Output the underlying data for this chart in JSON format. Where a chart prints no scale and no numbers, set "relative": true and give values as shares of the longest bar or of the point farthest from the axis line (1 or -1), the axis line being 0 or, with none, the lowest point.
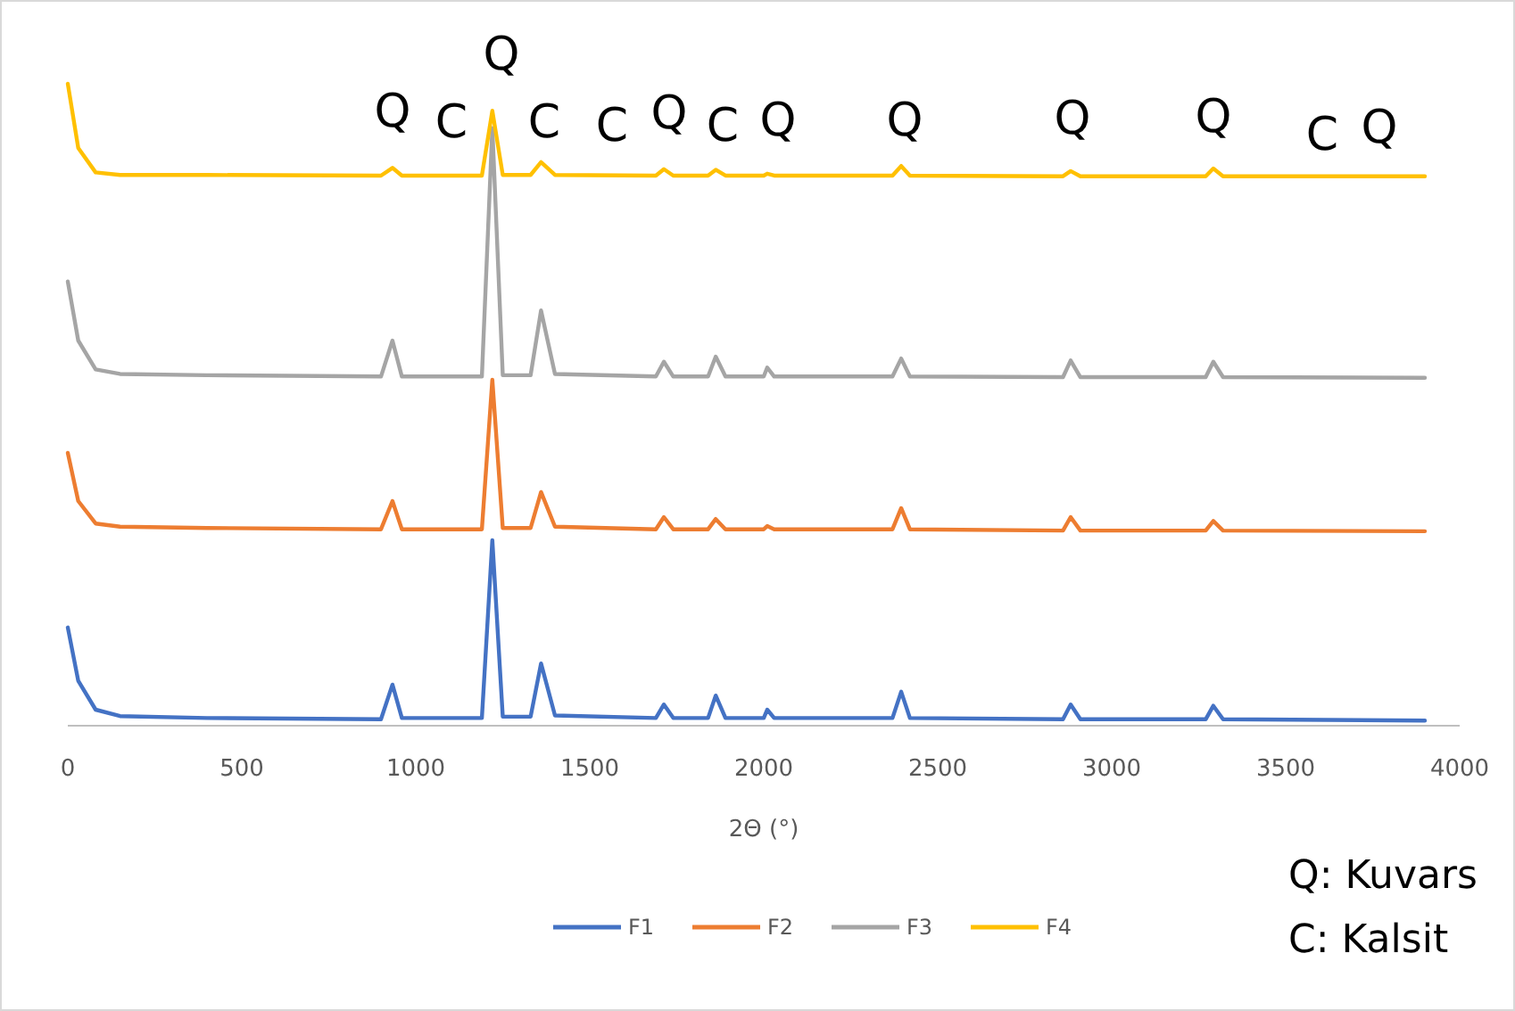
{
  "chart_data": {
    "type": "line",
    "relative": true,
    "xlabel": "2Θ (°)",
    "xlim": [
      0,
      4000
    ],
    "xticks": [
      0,
      500,
      1000,
      1500,
      2000,
      2500,
      3000,
      3500,
      4000
    ],
    "grid": false,
    "legend": "bottom",
    "marker": "none",
    "line_style": "solid",
    "x": [
      0,
      30,
      80,
      150,
      400,
      900,
      933,
      960,
      1190,
      1220,
      1250,
      1330,
      1360,
      1400,
      1690,
      1713,
      1740,
      1840,
      1862,
      1890,
      2000,
      2010,
      2030,
      2370,
      2395,
      2420,
      2860,
      2882,
      2910,
      3270,
      3292,
      3320,
      3900
    ],
    "series": [
      {
        "name": "F1",
        "color": "#4472c4",
        "values": [
          0.153,
          0.07,
          0.025,
          0.015,
          0.012,
          0.01,
          0.064,
          0.012,
          0.012,
          0.289,
          0.014,
          0.014,
          0.097,
          0.016,
          0.012,
          0.033,
          0.012,
          0.012,
          0.047,
          0.012,
          0.012,
          0.025,
          0.012,
          0.012,
          0.053,
          0.012,
          0.01,
          0.033,
          0.01,
          0.01,
          0.031,
          0.01,
          0.008
        ]
      },
      {
        "name": "F2",
        "color": "#ed7d31",
        "values": [
          0.425,
          0.35,
          0.315,
          0.31,
          0.308,
          0.306,
          0.35,
          0.306,
          0.306,
          0.539,
          0.308,
          0.308,
          0.364,
          0.31,
          0.306,
          0.325,
          0.306,
          0.306,
          0.322,
          0.306,
          0.306,
          0.311,
          0.306,
          0.306,
          0.339,
          0.306,
          0.304,
          0.325,
          0.304,
          0.304,
          0.319,
          0.304,
          0.303
        ]
      },
      {
        "name": "F3",
        "color": "#a5a5a5",
        "values": [
          0.692,
          0.6,
          0.555,
          0.548,
          0.546,
          0.544,
          0.6,
          0.544,
          0.544,
          0.931,
          0.546,
          0.546,
          0.647,
          0.548,
          0.544,
          0.567,
          0.544,
          0.544,
          0.575,
          0.544,
          0.544,
          0.558,
          0.544,
          0.544,
          0.572,
          0.544,
          0.543,
          0.569,
          0.543,
          0.543,
          0.567,
          0.543,
          0.542
        ]
      },
      {
        "name": "F4",
        "color": "#ffc000",
        "values": [
          1,
          0.9,
          0.862,
          0.858,
          0.858,
          0.857,
          0.869,
          0.857,
          0.857,
          0.958,
          0.858,
          0.858,
          0.878,
          0.858,
          0.857,
          0.867,
          0.857,
          0.857,
          0.866,
          0.857,
          0.857,
          0.86,
          0.857,
          0.857,
          0.872,
          0.857,
          0.856,
          0.864,
          0.856,
          0.856,
          0.868,
          0.856,
          0.856
        ]
      }
    ],
    "annotations": [
      "Q",
      "C",
      "Q",
      "C",
      "C",
      "Q",
      "C",
      "Q",
      "Q",
      "Q",
      "Q",
      "C",
      "Q",
      "Q: Kuvars",
      "C: Kalsit"
    ]
  }
}
